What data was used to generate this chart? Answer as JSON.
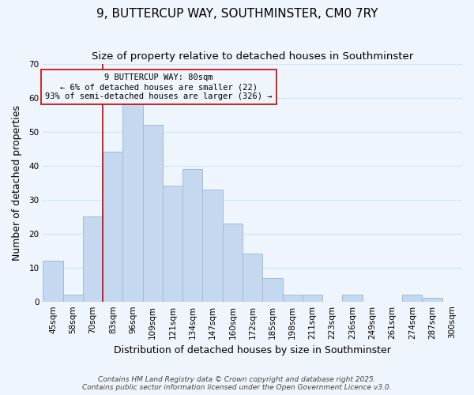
{
  "title": "9, BUTTERCUP WAY, SOUTHMINSTER, CM0 7RY",
  "subtitle": "Size of property relative to detached houses in Southminster",
  "xlabel": "Distribution of detached houses by size in Southminster",
  "ylabel": "Number of detached properties",
  "bar_values": [
    12,
    2,
    25,
    44,
    58,
    52,
    34,
    39,
    33,
    23,
    14,
    7,
    2,
    2,
    0,
    2,
    0,
    0,
    2,
    1,
    0
  ],
  "bar_labels": [
    "45sqm",
    "58sqm",
    "70sqm",
    "83sqm",
    "96sqm",
    "109sqm",
    "121sqm",
    "134sqm",
    "147sqm",
    "160sqm",
    "172sqm",
    "185sqm",
    "198sqm",
    "211sqm",
    "223sqm",
    "236sqm",
    "249sqm",
    "261sqm",
    "274sqm",
    "287sqm",
    "300sqm"
  ],
  "bar_color": "#c5d8f0",
  "bar_edge_color": "#a0bcd8",
  "grid_color": "#d0e4f7",
  "background_color": "#eef5fc",
  "red_line_x": 3,
  "red_line_color": "#cc0000",
  "annotation_box_edge": "#cc0000",
  "annotation_lines": [
    "9 BUTTERCUP WAY: 80sqm",
    "← 6% of detached houses are smaller (22)",
    "93% of semi-detached houses are larger (326) →"
  ],
  "annotation_fontsize": 7.5,
  "ylim": [
    0,
    70
  ],
  "yticks": [
    0,
    10,
    20,
    30,
    40,
    50,
    60,
    70
  ],
  "footer1": "Contains HM Land Registry data © Crown copyright and database right 2025.",
  "footer2": "Contains public sector information licensed under the Open Government Licence v3.0.",
  "title_fontsize": 11,
  "subtitle_fontsize": 9.5,
  "axis_label_fontsize": 9,
  "tick_fontsize": 7.5,
  "footer_fontsize": 6.5
}
